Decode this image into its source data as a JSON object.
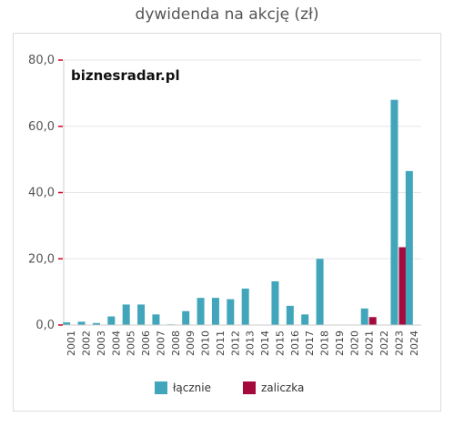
{
  "chart_data": {
    "type": "bar",
    "title": "dywidenda na akcję (zł)",
    "watermark": "biznesradar.pl",
    "categories": [
      "2001",
      "2002",
      "2003",
      "2004",
      "2005",
      "2006",
      "2007",
      "2008",
      "2009",
      "2010",
      "2011",
      "2012",
      "2013",
      "2014",
      "2015",
      "2016",
      "2017",
      "2018",
      "2019",
      "2020",
      "2021",
      "2022",
      "2023",
      "2024"
    ],
    "series": [
      {
        "name": "łącznie",
        "color": "#41a6bb",
        "values": [
          0.8,
          1.0,
          0.6,
          2.6,
          6.2,
          6.2,
          3.2,
          0.2,
          4.2,
          8.2,
          8.2,
          7.8,
          11.0,
          0,
          13.2,
          5.8,
          3.2,
          20.0,
          0,
          0,
          5.0,
          0,
          68.0,
          46.5
        ]
      },
      {
        "name": "zaliczka",
        "color": "#a50a3c",
        "values": [
          0,
          0,
          0,
          0,
          0,
          0,
          0,
          0,
          0,
          0,
          0,
          0,
          0,
          0,
          0,
          0,
          0,
          0,
          0,
          0,
          2.4,
          0,
          23.5,
          0
        ]
      }
    ],
    "yticks": [
      "0,0",
      "20,0",
      "40,0",
      "60,0",
      "80,0"
    ],
    "ylim": [
      0,
      80
    ],
    "legend_position": "bottom"
  }
}
